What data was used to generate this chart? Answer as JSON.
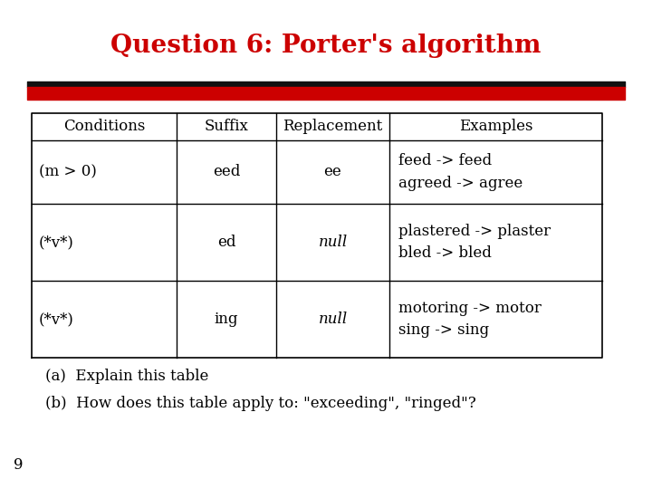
{
  "title": "Question 6: Porter's algorithm",
  "title_color": "#cc0000",
  "title_fontsize": 20,
  "bg_color": "#ffffff",
  "bar_red": "#cc0000",
  "bar_black": "#111111",
  "headers": [
    "Conditions",
    "Suffix",
    "Replacement",
    "Examples"
  ],
  "rows": [
    {
      "conditions": "(m > 0)",
      "suffix": "eed",
      "replacement": "ee",
      "replacement_italic": false,
      "examples": "feed -> feed\nagreed -> agree"
    },
    {
      "conditions": "(*v*)",
      "suffix": "ed",
      "replacement": "null",
      "replacement_italic": true,
      "examples": "plastered -> plaster\nbled -> bled"
    },
    {
      "conditions": "(*v*)",
      "suffix": "ing",
      "replacement": "null",
      "replacement_italic": true,
      "examples": "motoring -> motor\nsing -> sing"
    }
  ],
  "footnotes": [
    "(a)  Explain this table",
    "(b)  How does this table apply to: \"exceeding\", \"ringed\"?"
  ],
  "page_number": "9"
}
